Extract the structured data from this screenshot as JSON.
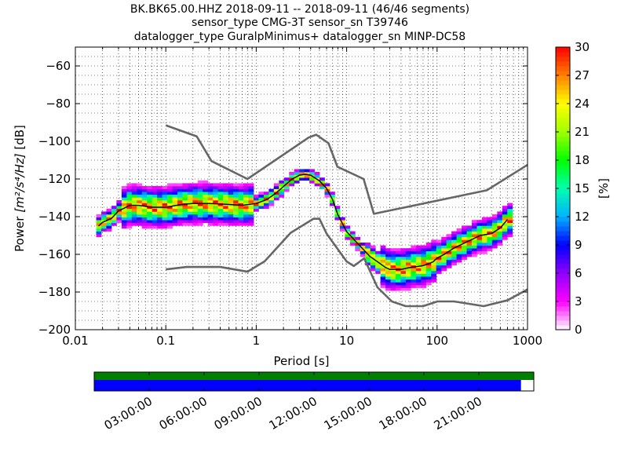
{
  "chart_data": {
    "type": "heatmap",
    "title_lines": [
      "BK.BK65.00.HHZ   2018-09-11 -- 2018-09-11  (46/46 segments)",
      "sensor_type CMG-3T sensor_sn T39746",
      "datalogger_type GuralpMinimus+ datalogger_sn MINP-DC58"
    ],
    "xlabel": "Period [s]",
    "ylabel_parts": {
      "prefix": "Power ",
      "unit": "[m²/s⁴/Hz]",
      "suffix": " [dB]"
    },
    "xscale": "log",
    "xlim": [
      0.01,
      1000
    ],
    "ylim": [
      -200,
      -50
    ],
    "x_ticks": [
      0.01,
      0.1,
      1,
      10,
      100,
      1000
    ],
    "x_tick_labels": [
      "0.01",
      "0.1",
      "1",
      "10",
      "100",
      "1000"
    ],
    "y_ticks": [
      -200,
      -180,
      -160,
      -140,
      -120,
      -100,
      -80,
      -60
    ],
    "y_tick_labels": [
      "−200",
      "−180",
      "−160",
      "−140",
      "−120",
      "−100",
      "−80",
      "−60"
    ],
    "grid": true,
    "colorbar": {
      "label": "[%]",
      "range": [
        0,
        30
      ],
      "ticks": [
        0,
        3,
        6,
        9,
        12,
        15,
        18,
        21,
        24,
        27,
        30
      ],
      "colormap": [
        "#ffffff",
        "#ff00ff",
        "#9000ff",
        "#0000ff",
        "#00b0ff",
        "#00ffb0",
        "#00ff00",
        "#a0ff00",
        "#ffff00",
        "#ff8000",
        "#ff0000"
      ]
    },
    "noise_models": {
      "color": "#666666",
      "nhnm": {
        "periods": [
          0.1,
          0.22,
          0.32,
          0.8,
          3.8,
          4.6,
          6.3,
          7.9,
          15.4,
          20,
          354.8,
          1000
        ],
        "power": [
          -91.5,
          -97.4,
          -110.5,
          -120,
          -98,
          -96.5,
          -101,
          -113.5,
          -120,
          -138.5,
          -126,
          -112.5
        ]
      },
      "nlnm": {
        "periods": [
          0.1,
          0.17,
          0.4,
          0.8,
          1.24,
          2.4,
          4.3,
          5,
          6,
          10,
          12,
          15.6,
          21.9,
          31.6,
          45,
          70,
          101,
          154,
          328,
          600,
          1000
        ],
        "power": [
          -168,
          -166.7,
          -166.7,
          -169.2,
          -163.7,
          -148.6,
          -141.1,
          -141.1,
          -149,
          -163.8,
          -166.2,
          -162.1,
          -177.5,
          -185,
          -187.5,
          -187.5,
          -185,
          -185,
          -187.5,
          -184.4,
          -178.6
        ]
      }
    },
    "mean_curve": {
      "periods": [
        0.018,
        0.02,
        0.025,
        0.03,
        0.04,
        0.05,
        0.07,
        0.1,
        0.15,
        0.2,
        0.3,
        0.5,
        0.7,
        1,
        1.3,
        1.6,
        2,
        2.5,
        3,
        3.5,
        4,
        5,
        6,
        7,
        8,
        10,
        12,
        15,
        18,
        22,
        27,
        30,
        40,
        50,
        60,
        70,
        80,
        90,
        100,
        120,
        150,
        200,
        300,
        400,
        500,
        600
      ],
      "power": [
        -145,
        -143,
        -141,
        -137,
        -134,
        -134,
        -135,
        -135,
        -133.5,
        -133,
        -133,
        -133.5,
        -134,
        -133,
        -131,
        -128,
        -124,
        -120,
        -118,
        -117.5,
        -118,
        -121,
        -125,
        -131,
        -139,
        -148,
        -152,
        -157,
        -161,
        -164,
        -167,
        -168,
        -168,
        -167,
        -166.5,
        -166,
        -165,
        -164,
        -162,
        -160,
        -157,
        -154,
        -150,
        -149,
        -146,
        -141.5
      ],
      "color": "#000000"
    },
    "time_coverage": {
      "labels": [
        "03:00:00",
        "06:00:00",
        "09:00:00",
        "12:00:00",
        "15:00:00",
        "18:00:00",
        "21:00:00"
      ],
      "hours": [
        3,
        6,
        9,
        12,
        15,
        18,
        21
      ],
      "window_hours": [
        0,
        24
      ],
      "data_coverage_end_hours": 23.3,
      "colors": {
        "segments": "#008000",
        "data": "#0000ff"
      }
    }
  }
}
